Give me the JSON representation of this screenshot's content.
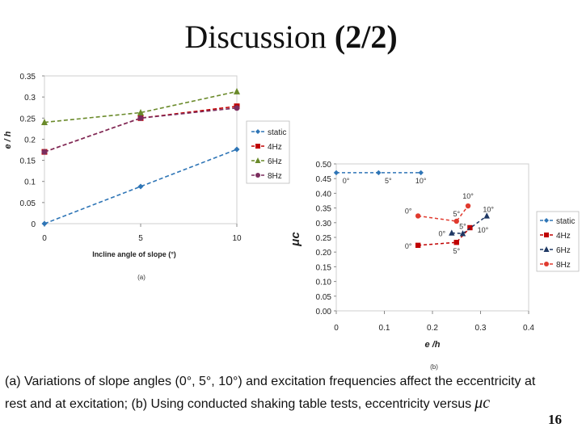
{
  "slide": {
    "title_main": "Discussion ",
    "title_part": "(2/2)",
    "caption_line1": "(a) Variations of slope angles (0°, 5°, 10°) and excitation frequencies affect the eccentricity at",
    "caption_line2": "rest and at excitation; (b) Using conducted shaking table tests, eccentricity versus",
    "caption_mu": "μc",
    "page_number": "16"
  },
  "chart_data": [
    {
      "id": "a",
      "type": "line",
      "caption": "(a)",
      "xlabel": "Incline angle of slope (°)",
      "ylabel": "e / h",
      "categories": [
        "0",
        "5",
        "10"
      ],
      "xticks": [
        "0",
        "5",
        "10"
      ],
      "ylim": [
        0,
        0.35
      ],
      "yticks": [
        "0",
        "0.05",
        "0.1",
        "0.15",
        "0.2",
        "0.25",
        "0.3",
        "0.35"
      ],
      "series": [
        {
          "name": "static",
          "values": [
            0.0,
            0.088,
            0.176
          ],
          "color": "#2e75b6",
          "marker": "diamond"
        },
        {
          "name": "4Hz",
          "values": [
            0.17,
            0.25,
            0.278
          ],
          "color": "#c00000",
          "marker": "square"
        },
        {
          "name": "6Hz",
          "values": [
            0.24,
            0.263,
            0.313
          ],
          "color": "#6a8a2a",
          "marker": "triangle"
        },
        {
          "name": "8Hz",
          "values": [
            0.17,
            0.25,
            0.274
          ],
          "color": "#7b2d5e",
          "marker": "circle"
        }
      ]
    },
    {
      "id": "b",
      "type": "scatter",
      "caption": "(b)",
      "xlabel": "e /h",
      "ylabel": "μc",
      "xlim": [
        0,
        0.4
      ],
      "ylim": [
        0,
        0.5
      ],
      "xticks": [
        "0",
        "0.1",
        "0.2",
        "0.3",
        "0.4"
      ],
      "yticks": [
        "0.00",
        "0.05",
        "0.10",
        "0.15",
        "0.20",
        "0.25",
        "0.30",
        "0.35",
        "0.40",
        "0.45",
        "0.50"
      ],
      "series": [
        {
          "name": "static",
          "color": "#2e75b6",
          "marker": "diamond",
          "points": [
            {
              "x": 0.0,
              "y": 0.47,
              "label": "0°"
            },
            {
              "x": 0.088,
              "y": 0.47,
              "label": "5°"
            },
            {
              "x": 0.176,
              "y": 0.47,
              "label": "10°"
            }
          ]
        },
        {
          "name": "4Hz",
          "color": "#c00000",
          "marker": "square",
          "points": [
            {
              "x": 0.17,
              "y": 0.223,
              "label": "0°"
            },
            {
              "x": 0.25,
              "y": 0.233,
              "label": "5°"
            },
            {
              "x": 0.278,
              "y": 0.283,
              "label": "10°"
            }
          ]
        },
        {
          "name": "6Hz",
          "color": "#1f3864",
          "marker": "triangle",
          "points": [
            {
              "x": 0.24,
              "y": 0.265,
              "label": "0°"
            },
            {
              "x": 0.263,
              "y": 0.263,
              "label": "5°"
            },
            {
              "x": 0.313,
              "y": 0.323,
              "label": "10°"
            }
          ]
        },
        {
          "name": "8Hz",
          "color": "#e03a2e",
          "marker": "circle",
          "points": [
            {
              "x": 0.17,
              "y": 0.323,
              "label": "0°"
            },
            {
              "x": 0.25,
              "y": 0.305,
              "label": "5°"
            },
            {
              "x": 0.274,
              "y": 0.357,
              "label": "10°"
            }
          ]
        }
      ]
    }
  ]
}
